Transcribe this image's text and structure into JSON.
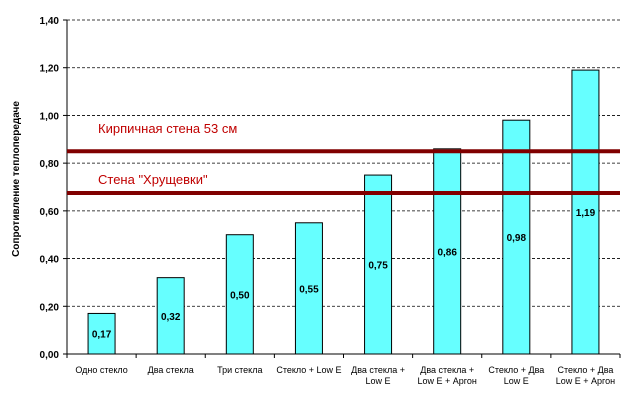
{
  "chart_data": {
    "type": "bar",
    "title": "",
    "xlabel": "",
    "ylabel": "Сопротивление теплопередаче",
    "ylim": [
      0,
      1.4
    ],
    "yticks": [
      "0,00",
      "0,20",
      "0,40",
      "0,60",
      "0,80",
      "1,00",
      "1,20",
      "1,40"
    ],
    "grid": true,
    "categories": [
      [
        "Одно стекло"
      ],
      [
        "Два стекла"
      ],
      [
        "Три стекла"
      ],
      [
        "Стекло + Low E"
      ],
      [
        "Два стекла +",
        "Low E"
      ],
      [
        "Два стекла +",
        "Low E + Аргон"
      ],
      [
        "Стекло + Два",
        "Low E"
      ],
      [
        "Стекло + Два",
        "Low E + Аргон"
      ]
    ],
    "values": [
      0.17,
      0.32,
      0.5,
      0.55,
      0.75,
      0.86,
      0.98,
      1.19
    ],
    "value_labels": [
      "0,17",
      "0,32",
      "0,50",
      "0,55",
      "0,75",
      "0,86",
      "0,98",
      "1,19"
    ],
    "bar_color": "#66ffff",
    "reference_lines": [
      {
        "label": "Кирпичная стена 53 см",
        "value": 0.85,
        "color": "#800000"
      },
      {
        "label": "Стена \"Хрущевки\"",
        "value": 0.675,
        "color": "#800000"
      }
    ],
    "reference_label_color": "#c00000"
  }
}
